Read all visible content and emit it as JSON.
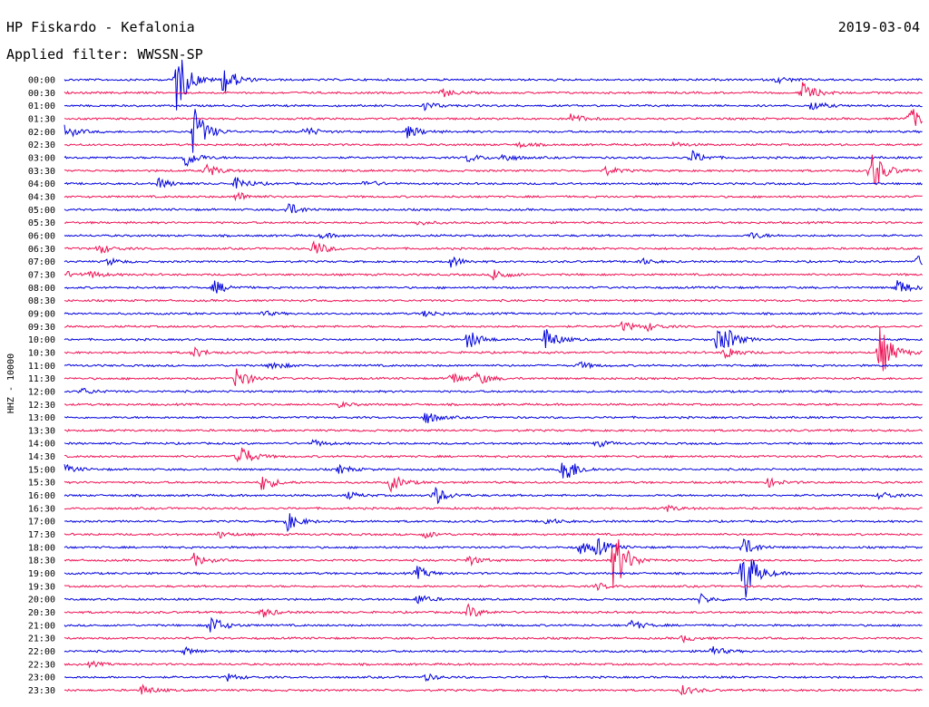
{
  "header": {
    "station": "HP Fiskardo - Kefalonia",
    "date": "2019-03-04",
    "filter_label": "Applied filter:",
    "filter_value": "WWSSN-SP"
  },
  "chart_data": {
    "type": "line",
    "title": "HP Fiskardo - Kefalonia",
    "ylabel": "HHZ - 10000",
    "colors": [
      "#0000dd",
      "#ee1155"
    ],
    "tick_labels": [
      "00:00",
      "00:30",
      "01:00",
      "01:30",
      "02:00",
      "02:30",
      "03:00",
      "03:30",
      "04:00",
      "04:30",
      "05:00",
      "05:30",
      "06:00",
      "06:30",
      "07:00",
      "07:30",
      "08:00",
      "08:30",
      "09:00",
      "09:30",
      "10:00",
      "10:30",
      "11:00",
      "11:30",
      "12:00",
      "12:30",
      "13:00",
      "13:30",
      "14:00",
      "14:30",
      "15:00",
      "15:30",
      "16:00",
      "16:30",
      "17:00",
      "17:30",
      "18:00",
      "18:30",
      "19:00",
      "19:30",
      "20:00",
      "20:30",
      "21:00",
      "21:30",
      "22:00",
      "22:30",
      "23:00",
      "23:30"
    ],
    "events": [
      {
        "row": 0,
        "x": 0.13,
        "amp": 40,
        "dir": "both"
      },
      {
        "row": 0,
        "x": 0.185,
        "amp": 18,
        "dir": "both"
      },
      {
        "row": 0,
        "x": 0.83,
        "amp": 4,
        "dir": "both"
      },
      {
        "row": 1,
        "x": 0.44,
        "amp": 5,
        "dir": "both"
      },
      {
        "row": 1,
        "x": 0.86,
        "amp": 12,
        "dir": "both"
      },
      {
        "row": 2,
        "x": 0.42,
        "amp": 5,
        "dir": "both"
      },
      {
        "row": 2,
        "x": 0.87,
        "amp": 6,
        "dir": "both"
      },
      {
        "row": 3,
        "x": 0.59,
        "amp": 6,
        "dir": "both"
      },
      {
        "row": 3,
        "x": 0.985,
        "amp": 14,
        "dir": "both"
      },
      {
        "row": 4,
        "x": 0.0,
        "amp": 8,
        "dir": "both"
      },
      {
        "row": 4,
        "x": 0.15,
        "amp": 30,
        "dir": "both"
      },
      {
        "row": 4,
        "x": 0.28,
        "amp": 6,
        "dir": "both"
      },
      {
        "row": 4,
        "x": 0.4,
        "amp": 8,
        "dir": "both"
      },
      {
        "row": 5,
        "x": 0.53,
        "amp": 3,
        "dir": "both"
      },
      {
        "row": 5,
        "x": 0.71,
        "amp": 3,
        "dir": "both"
      },
      {
        "row": 6,
        "x": 0.14,
        "amp": 12,
        "dir": "both"
      },
      {
        "row": 6,
        "x": 0.47,
        "amp": 5,
        "dir": "both"
      },
      {
        "row": 6,
        "x": 0.51,
        "amp": 5,
        "dir": "both"
      },
      {
        "row": 6,
        "x": 0.73,
        "amp": 8,
        "dir": "both"
      },
      {
        "row": 7,
        "x": 0.165,
        "amp": 8,
        "dir": "both"
      },
      {
        "row": 7,
        "x": 0.63,
        "amp": 5,
        "dir": "both"
      },
      {
        "row": 7,
        "x": 0.94,
        "amp": 26,
        "dir": "both"
      },
      {
        "row": 8,
        "x": 0.11,
        "amp": 6,
        "dir": "both"
      },
      {
        "row": 8,
        "x": 0.2,
        "amp": 8,
        "dir": "both"
      },
      {
        "row": 8,
        "x": 0.35,
        "amp": 4,
        "dir": "both"
      },
      {
        "row": 9,
        "x": 0.2,
        "amp": 6,
        "dir": "both"
      },
      {
        "row": 10,
        "x": 0.26,
        "amp": 8,
        "dir": "both"
      },
      {
        "row": 11,
        "x": 0.41,
        "amp": 3,
        "dir": "both"
      },
      {
        "row": 12,
        "x": 0.3,
        "amp": 3,
        "dir": "both"
      },
      {
        "row": 12,
        "x": 0.8,
        "amp": 4,
        "dir": "both"
      },
      {
        "row": 13,
        "x": 0.04,
        "amp": 6,
        "dir": "both"
      },
      {
        "row": 13,
        "x": 0.29,
        "amp": 10,
        "dir": "both"
      },
      {
        "row": 14,
        "x": 0.05,
        "amp": 4,
        "dir": "both"
      },
      {
        "row": 14,
        "x": 0.45,
        "amp": 6,
        "dir": "both"
      },
      {
        "row": 14,
        "x": 0.67,
        "amp": 4,
        "dir": "both"
      },
      {
        "row": 14,
        "x": 0.99,
        "amp": 8,
        "dir": "both"
      },
      {
        "row": 15,
        "x": 0.0,
        "amp": 4,
        "dir": "both"
      },
      {
        "row": 15,
        "x": 0.03,
        "amp": 4,
        "dir": "both"
      },
      {
        "row": 15,
        "x": 0.5,
        "amp": 8,
        "dir": "both"
      },
      {
        "row": 16,
        "x": 0.175,
        "amp": 8,
        "dir": "both"
      },
      {
        "row": 16,
        "x": 0.97,
        "amp": 10,
        "dir": "both"
      },
      {
        "row": 18,
        "x": 0.23,
        "amp": 3,
        "dir": "both"
      },
      {
        "row": 18,
        "x": 0.42,
        "amp": 4,
        "dir": "both"
      },
      {
        "row": 19,
        "x": 0.65,
        "amp": 6,
        "dir": "both"
      },
      {
        "row": 19,
        "x": 0.68,
        "amp": 4,
        "dir": "both"
      },
      {
        "row": 20,
        "x": 0.47,
        "amp": 12,
        "dir": "both"
      },
      {
        "row": 20,
        "x": 0.56,
        "amp": 14,
        "dir": "both"
      },
      {
        "row": 20,
        "x": 0.76,
        "amp": 12,
        "dir": "both"
      },
      {
        "row": 20,
        "x": 0.77,
        "amp": 10,
        "dir": "both"
      },
      {
        "row": 21,
        "x": 0.15,
        "amp": 6,
        "dir": "both"
      },
      {
        "row": 21,
        "x": 0.77,
        "amp": 8,
        "dir": "both"
      },
      {
        "row": 21,
        "x": 0.95,
        "amp": 30,
        "dir": "both"
      },
      {
        "row": 22,
        "x": 0.24,
        "amp": 6,
        "dir": "both"
      },
      {
        "row": 22,
        "x": 0.6,
        "amp": 4,
        "dir": "both"
      },
      {
        "row": 23,
        "x": 0.2,
        "amp": 14,
        "dir": "both"
      },
      {
        "row": 23,
        "x": 0.45,
        "amp": 8,
        "dir": "both"
      },
      {
        "row": 23,
        "x": 0.48,
        "amp": 8,
        "dir": "both"
      },
      {
        "row": 24,
        "x": 0.02,
        "amp": 4,
        "dir": "both"
      },
      {
        "row": 25,
        "x": 0.32,
        "amp": 3,
        "dir": "both"
      },
      {
        "row": 26,
        "x": 0.42,
        "amp": 8,
        "dir": "both"
      },
      {
        "row": 28,
        "x": 0.29,
        "amp": 4,
        "dir": "both"
      },
      {
        "row": 28,
        "x": 0.62,
        "amp": 4,
        "dir": "both"
      },
      {
        "row": 29,
        "x": 0.2,
        "amp": 20,
        "dir": "both"
      },
      {
        "row": 30,
        "x": 0.0,
        "amp": 5,
        "dir": "both"
      },
      {
        "row": 30,
        "x": 0.32,
        "amp": 5,
        "dir": "both"
      },
      {
        "row": 30,
        "x": 0.58,
        "amp": 22,
        "dir": "both"
      },
      {
        "row": 31,
        "x": 0.23,
        "amp": 10,
        "dir": "both"
      },
      {
        "row": 31,
        "x": 0.38,
        "amp": 10,
        "dir": "both"
      },
      {
        "row": 31,
        "x": 0.82,
        "amp": 5,
        "dir": "both"
      },
      {
        "row": 32,
        "x": 0.33,
        "amp": 4,
        "dir": "both"
      },
      {
        "row": 32,
        "x": 0.43,
        "amp": 12,
        "dir": "both"
      },
      {
        "row": 32,
        "x": 0.95,
        "amp": 5,
        "dir": "both"
      },
      {
        "row": 33,
        "x": 0.7,
        "amp": 4,
        "dir": "both"
      },
      {
        "row": 34,
        "x": 0.26,
        "amp": 10,
        "dir": "both"
      },
      {
        "row": 34,
        "x": 0.56,
        "amp": 4,
        "dir": "both"
      },
      {
        "row": 35,
        "x": 0.18,
        "amp": 4,
        "dir": "both"
      },
      {
        "row": 35,
        "x": 0.42,
        "amp": 4,
        "dir": "both"
      },
      {
        "row": 36,
        "x": 0.6,
        "amp": 8,
        "dir": "both"
      },
      {
        "row": 36,
        "x": 0.62,
        "amp": 10,
        "dir": "both"
      },
      {
        "row": 36,
        "x": 0.79,
        "amp": 12,
        "dir": "both"
      },
      {
        "row": 37,
        "x": 0.15,
        "amp": 8,
        "dir": "both"
      },
      {
        "row": 37,
        "x": 0.47,
        "amp": 6,
        "dir": "both"
      },
      {
        "row": 37,
        "x": 0.64,
        "amp": 40,
        "dir": "both"
      },
      {
        "row": 38,
        "x": 0.41,
        "amp": 8,
        "dir": "both"
      },
      {
        "row": 38,
        "x": 0.79,
        "amp": 40,
        "dir": "both"
      },
      {
        "row": 39,
        "x": 0.62,
        "amp": 4,
        "dir": "both"
      },
      {
        "row": 40,
        "x": 0.41,
        "amp": 6,
        "dir": "both"
      },
      {
        "row": 40,
        "x": 0.74,
        "amp": 6,
        "dir": "both"
      },
      {
        "row": 41,
        "x": 0.23,
        "amp": 6,
        "dir": "both"
      },
      {
        "row": 41,
        "x": 0.47,
        "amp": 8,
        "dir": "both"
      },
      {
        "row": 42,
        "x": 0.17,
        "amp": 12,
        "dir": "both"
      },
      {
        "row": 42,
        "x": 0.66,
        "amp": 6,
        "dir": "both"
      },
      {
        "row": 43,
        "x": 0.72,
        "amp": 4,
        "dir": "both"
      },
      {
        "row": 44,
        "x": 0.14,
        "amp": 4,
        "dir": "both"
      },
      {
        "row": 44,
        "x": 0.75,
        "amp": 8,
        "dir": "both"
      },
      {
        "row": 45,
        "x": 0.03,
        "amp": 3,
        "dir": "both"
      },
      {
        "row": 46,
        "x": 0.19,
        "amp": 4,
        "dir": "both"
      },
      {
        "row": 46,
        "x": 0.42,
        "amp": 4,
        "dir": "both"
      },
      {
        "row": 47,
        "x": 0.09,
        "amp": 6,
        "dir": "both"
      },
      {
        "row": 47,
        "x": 0.72,
        "amp": 6,
        "dir": "both"
      }
    ]
  }
}
